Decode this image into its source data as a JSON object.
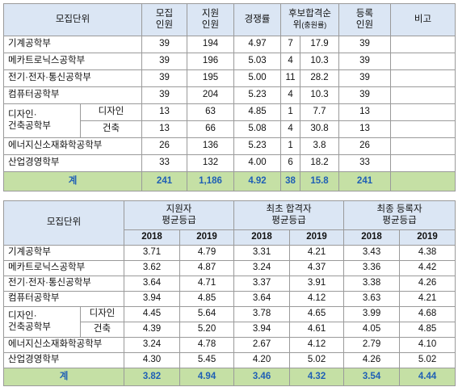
{
  "table1": {
    "headers": {
      "dept": "모집단위",
      "quota_l1": "모집",
      "quota_l2": "인원",
      "applicants_l1": "지원",
      "applicants_l2": "인원",
      "competition": "경쟁률",
      "waitlist_l1": "후보합격순",
      "waitlist_l2": "위",
      "waitlist_l2_small": "(충원률)",
      "enrolled_l1": "등록",
      "enrolled_l2": "인원",
      "notes": "비고"
    },
    "rows": [
      {
        "name": "기계공학부",
        "quota": "39",
        "applicants": "194",
        "competition": "4.97",
        "wait": "7",
        "rate": "17.9",
        "enrolled": "39"
      },
      {
        "name": "메카트로닉스공학부",
        "quota": "39",
        "applicants": "196",
        "competition": "5.03",
        "wait": "4",
        "rate": "10.3",
        "enrolled": "39"
      },
      {
        "name": "전기·전자·통신공학부",
        "quota": "39",
        "applicants": "195",
        "competition": "5.00",
        "wait": "11",
        "rate": "28.2",
        "enrolled": "39"
      },
      {
        "name": "컴퓨터공학부",
        "quota": "39",
        "applicants": "204",
        "competition": "5.23",
        "wait": "4",
        "rate": "10.3",
        "enrolled": "39"
      },
      {
        "group": "디자인·건축공학부",
        "group_l1": "디자인·",
        "group_l2": "건축공학부",
        "name": "디자인",
        "quota": "13",
        "applicants": "63",
        "competition": "4.85",
        "wait": "1",
        "rate": "7.7",
        "enrolled": "13"
      },
      {
        "name": "건축",
        "quota": "13",
        "applicants": "66",
        "competition": "5.08",
        "wait": "4",
        "rate": "30.8",
        "enrolled": "13"
      },
      {
        "name": "에너지신소재화학공학부",
        "quota": "26",
        "applicants": "136",
        "competition": "5.23",
        "wait": "1",
        "rate": "3.8",
        "enrolled": "26"
      },
      {
        "name": "산업경영학부",
        "quota": "33",
        "applicants": "132",
        "competition": "4.00",
        "wait": "6",
        "rate": "18.2",
        "enrolled": "33"
      }
    ],
    "total": {
      "name": "계",
      "quota": "241",
      "applicants": "1,186",
      "competition": "4.92",
      "wait": "38",
      "rate": "15.8",
      "enrolled": "241"
    }
  },
  "table2": {
    "headers": {
      "dept": "모집단위",
      "g1_l1": "지원자",
      "g1_l2": "평균등급",
      "g2_l1": "최초 합격자",
      "g2_l2": "평균등급",
      "g3_l1": "최종 등록자",
      "g3_l2": "평균등급",
      "y1": "2018",
      "y2": "2019"
    },
    "rows": [
      {
        "name": "기계공학부",
        "a18": "3.71",
        "a19": "4.79",
        "b18": "3.31",
        "b19": "4.21",
        "c18": "3.43",
        "c19": "4.38"
      },
      {
        "name": "메카트로닉스공학부",
        "a18": "3.62",
        "a19": "4.87",
        "b18": "3.24",
        "b19": "4.37",
        "c18": "3.36",
        "c19": "4.42"
      },
      {
        "name": "전기·전자·통신공학부",
        "a18": "3.64",
        "a19": "4.71",
        "b18": "3.37",
        "b19": "3.91",
        "c18": "3.38",
        "c19": "4.26"
      },
      {
        "name": "컴퓨터공학부",
        "a18": "3.94",
        "a19": "4.85",
        "b18": "3.64",
        "b19": "4.12",
        "c18": "3.63",
        "c19": "4.21"
      },
      {
        "group_l1": "디자인·",
        "group_l2": "건축공학부",
        "name": "디자인",
        "a18": "4.45",
        "a19": "5.64",
        "b18": "3.78",
        "b19": "4.65",
        "c18": "3.99",
        "c19": "4.68"
      },
      {
        "name": "건축",
        "a18": "4.39",
        "a19": "5.20",
        "b18": "3.94",
        "b19": "4.61",
        "c18": "4.05",
        "c19": "4.85"
      },
      {
        "name": "에너지신소재화학공학부",
        "a18": "3.24",
        "a19": "4.78",
        "b18": "2.67",
        "b19": "4.12",
        "c18": "2.79",
        "c19": "4.10"
      },
      {
        "name": "산업경영학부",
        "a18": "4.30",
        "a19": "5.45",
        "b18": "4.20",
        "b19": "5.02",
        "c18": "4.26",
        "c19": "5.02"
      }
    ],
    "total": {
      "name": "계",
      "a18": "3.82",
      "a19": "4.94",
      "b18": "3.46",
      "b19": "4.32",
      "c18": "3.54",
      "c19": "4.44"
    }
  },
  "colors": {
    "header_bg": "#dbe6f4",
    "total_bg": "#c5e0a5",
    "total_text": "#1f5fb5",
    "border": "#9a9a9a"
  }
}
